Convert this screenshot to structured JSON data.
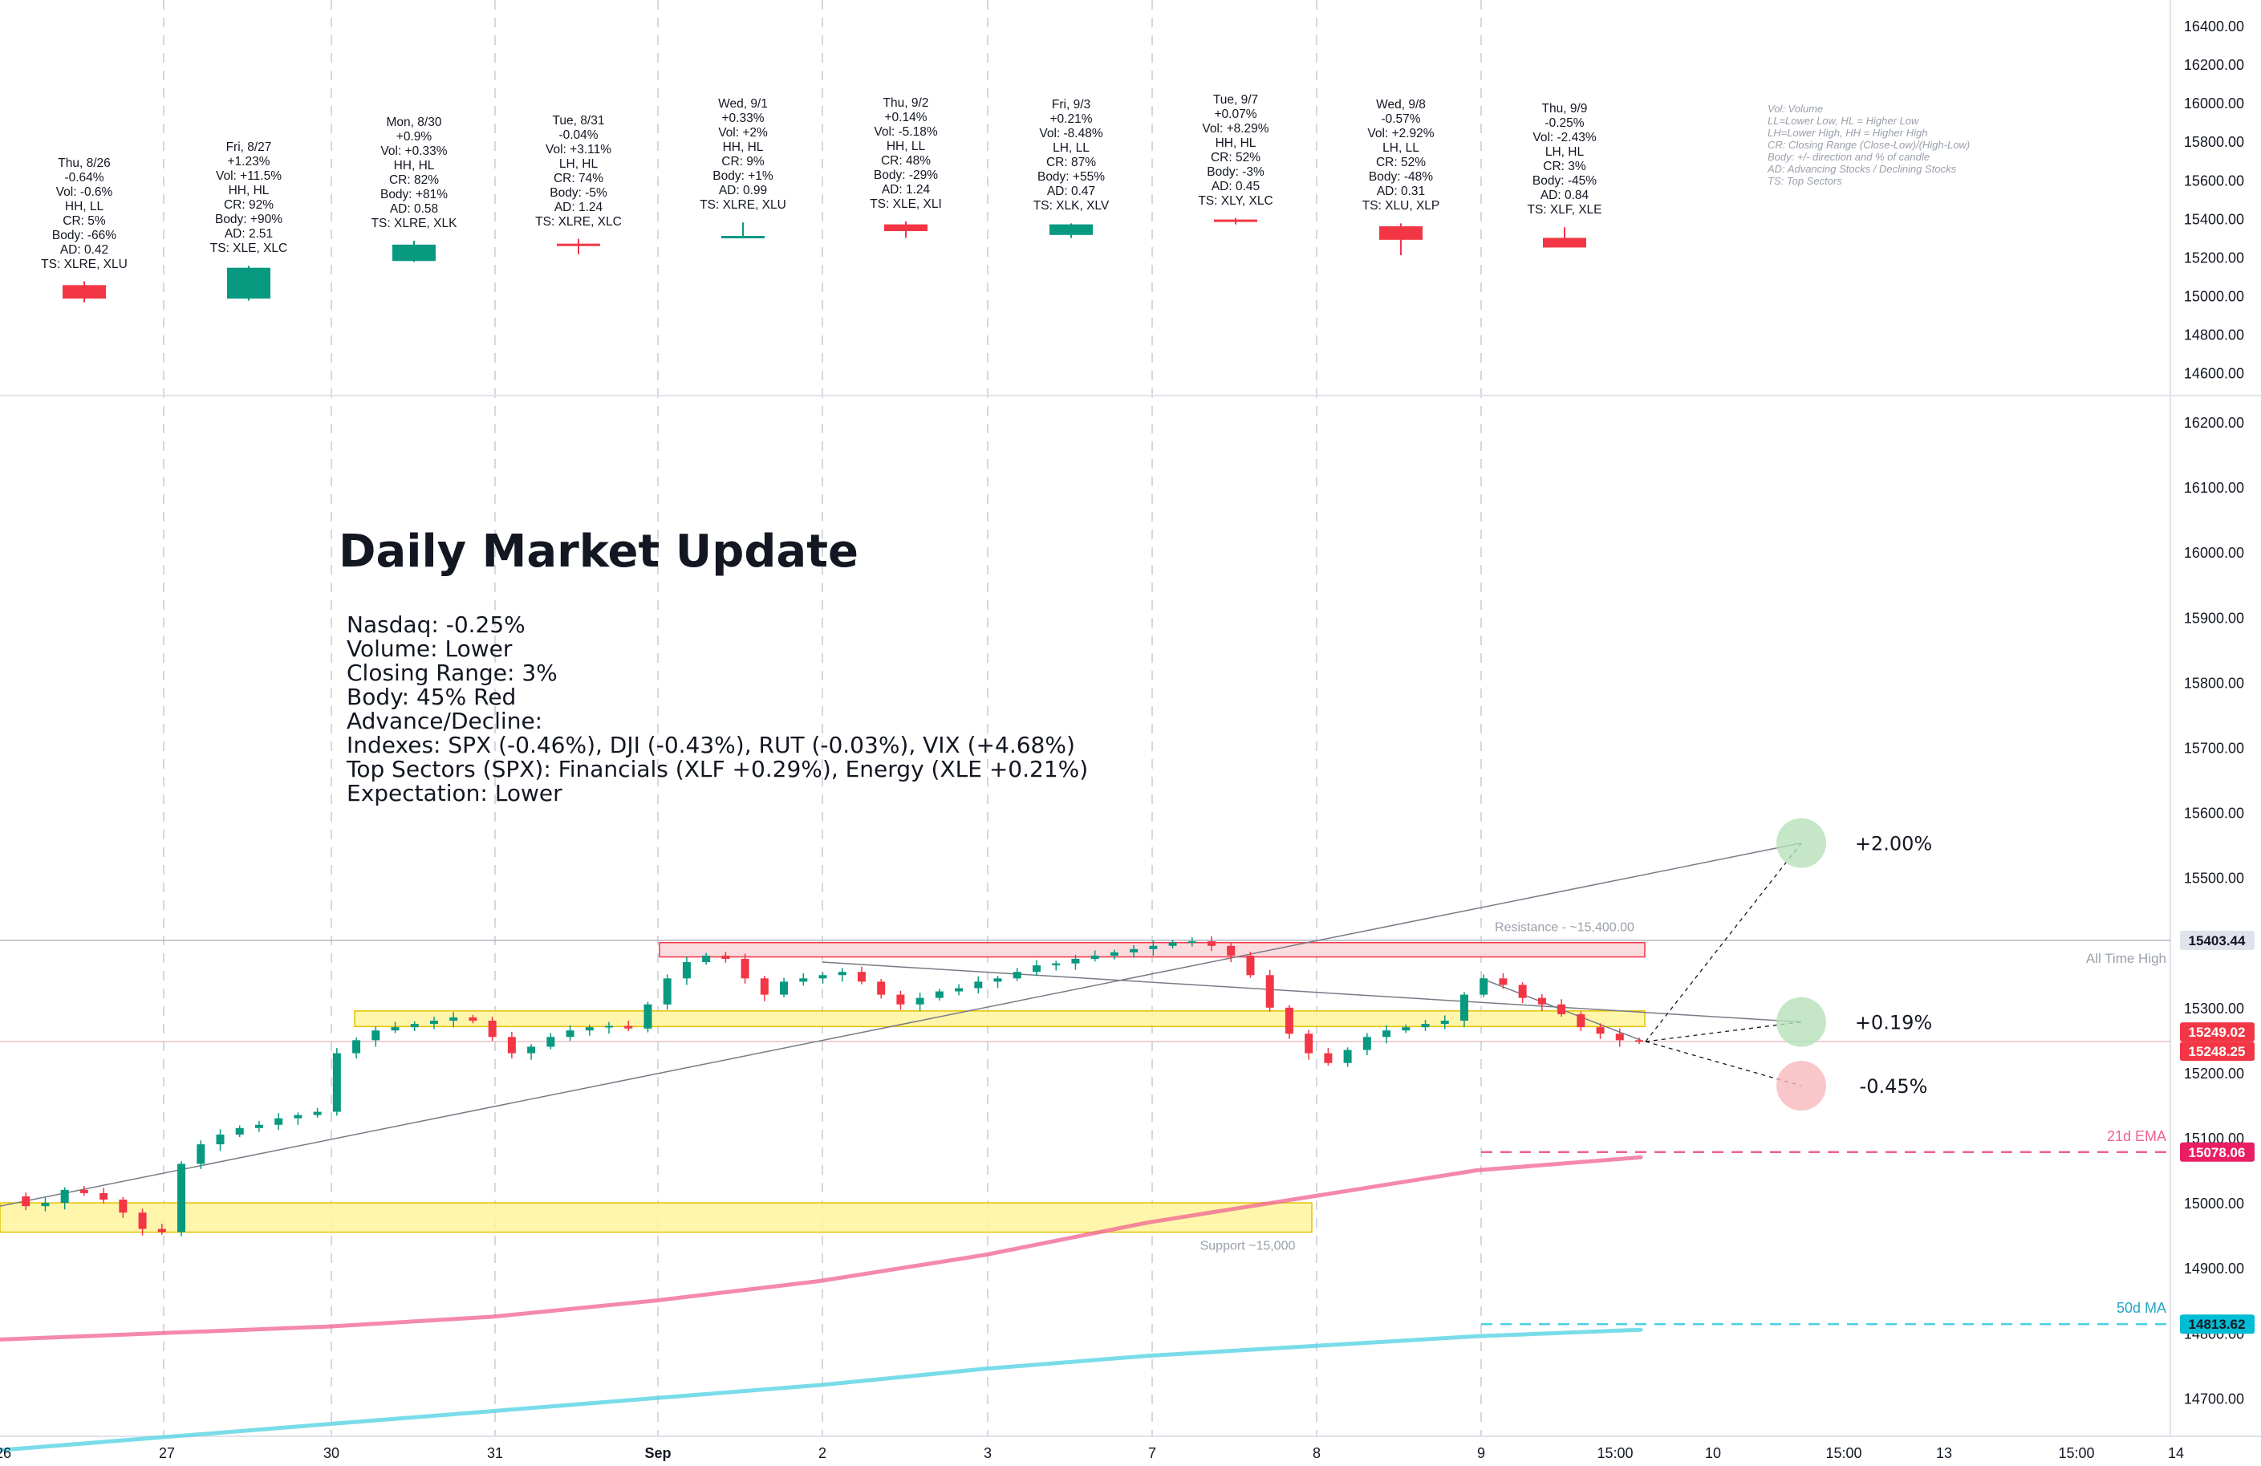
{
  "title": "Daily Market Update",
  "summary_lines": [
    "Nasdaq: -0.25%",
    "Volume: Lower",
    "Closing Range: 3%",
    "Body: 45% Red",
    "Advance/Decline:",
    "Indexes: SPX (-0.46%), DJI (-0.43%), RUT (-0.03%), VIX (+4.68%)",
    "Top Sectors (SPX): Financials (XLF +0.29%), Energy (XLE +0.21%)",
    "Expectation: Lower"
  ],
  "legend_lines": [
    "Vol: Volume",
    "LL=Lower Low, HL = Higher Low",
    "LH=Lower High, HH = Higher High",
    "CR: Closing Range (Close-Low)/(High-Low)",
    "Body: +/- direction and % of candle",
    "AD: Advancing Stocks / Declining Stocks",
    "TS: Top Sectors"
  ],
  "colors": {
    "up": "#089981",
    "down": "#f23645",
    "ema21": "#f06292",
    "ma50": "#4dd0e1",
    "zone_fill": "#fff59d",
    "zone_border": "#e6c200",
    "resistance_fill": "#fbd5d8",
    "resistance_border": "#f23645",
    "grid": "#e8eaee",
    "axis_text": "#131722",
    "muted_text": "#9aa0ab"
  },
  "daily_panel": {
    "y_axis_ticks": [
      "16400.00",
      "16200.00",
      "16000.00",
      "15800.00",
      "15600.00",
      "15400.00",
      "15200.00",
      "15000.00",
      "14800.00",
      "14600.00"
    ],
    "days": [
      {
        "lines": [
          "Thu, 8/26",
          "-0.64%",
          "Vol: -0.6%",
          "HH, LL",
          "CR: 5%",
          "Body: -66%",
          "AD: 0.42",
          "TS: XLRE, XLU"
        ],
        "open": 15055,
        "high": 15075,
        "low": 14965,
        "close": 14985
      },
      {
        "lines": [
          "Fri, 8/27",
          "+1.23%",
          "Vol: +11.5%",
          "HH, HL",
          "CR: 92%",
          "Body: +90%",
          "AD: 2.51",
          "TS: XLE, XLC"
        ],
        "open": 14985,
        "high": 15155,
        "low": 14975,
        "close": 15145
      },
      {
        "lines": [
          "Mon, 8/30",
          "+0.9%",
          "Vol: +0.33%",
          "HH, HL",
          "CR: 82%",
          "Body: +81%",
          "AD: 0.58",
          "TS: XLRE, XLK"
        ],
        "open": 15180,
        "high": 15285,
        "low": 15175,
        "close": 15265
      },
      {
        "lines": [
          "Tue, 8/31",
          "-0.04%",
          "Vol: +3.11%",
          "LH, HL",
          "CR: 74%",
          "Body: -5%",
          "AD: 1.24",
          "TS: XLRE, XLC"
        ],
        "open": 15270,
        "high": 15295,
        "low": 15215,
        "close": 15260
      },
      {
        "lines": [
          "Wed, 9/1",
          "+0.33%",
          "Vol: +2%",
          "HH, HL",
          "CR: 9%",
          "Body: +1%",
          "AD: 0.99",
          "TS: XLRE, XLU"
        ],
        "open": 15305,
        "high": 15380,
        "low": 15300,
        "close": 15310
      },
      {
        "lines": [
          "Thu, 9/2",
          "+0.14%",
          "Vol: -5.18%",
          "HH, LL",
          "CR: 48%",
          "Body: -29%",
          "AD: 1.24",
          "TS: XLE, XLI"
        ],
        "open": 15370,
        "high": 15385,
        "low": 15300,
        "close": 15335
      },
      {
        "lines": [
          "Fri, 9/3",
          "+0.21%",
          "Vol: -8.48%",
          "LH, LL",
          "CR: 87%",
          "Body: +55%",
          "AD: 0.47",
          "TS: XLK, XLV"
        ],
        "open": 15315,
        "high": 15375,
        "low": 15300,
        "close": 15370
      },
      {
        "lines": [
          "Tue, 9/7",
          "+0.07%",
          "Vol: +8.29%",
          "HH, HL",
          "CR: 52%",
          "Body: -3%",
          "AD: 0.45",
          "TS: XLY, XLC"
        ],
        "open": 15395,
        "high": 15403,
        "low": 15370,
        "close": 15385
      },
      {
        "lines": [
          "Wed, 9/8",
          "-0.57%",
          "Vol: +2.92%",
          "LH, LL",
          "CR: 52%",
          "Body: -48%",
          "AD: 0.31",
          "TS: XLU, XLP"
        ],
        "open": 15360,
        "high": 15375,
        "low": 15210,
        "close": 15290
      },
      {
        "lines": [
          "Thu, 9/9",
          "-0.25%",
          "Vol: -2.43%",
          "LH, HL",
          "CR: 3%",
          "Body: -45%",
          "AD: 0.84",
          "TS: XLF, XLE"
        ],
        "open": 15300,
        "high": 15355,
        "low": 15255,
        "close": 15250
      }
    ]
  },
  "chart_data": {
    "type": "line",
    "title": "",
    "y_axis_ticks": [
      "16200.00",
      "16100.00",
      "16000.00",
      "15900.00",
      "15800.00",
      "15700.00",
      "15600.00",
      "15500.00",
      "15400.00",
      "15300.00",
      "15200.00",
      "15100.00",
      "15000.00",
      "14900.00",
      "14800.00",
      "14700.00"
    ],
    "x_axis_ticks": [
      "26",
      "27",
      "30",
      "31",
      "Sep",
      "2",
      "3",
      "7",
      "8",
      "9",
      "15:00",
      "10",
      "15:00",
      "13",
      "15:00",
      "14"
    ],
    "ylim": [
      14650,
      16240
    ],
    "price_path_hourly": [
      15010,
      14995,
      15000,
      15020,
      15015,
      15005,
      14985,
      14960,
      14955,
      15060,
      15090,
      15105,
      15115,
      15120,
      15130,
      15135,
      15140,
      15230,
      15250,
      15265,
      15270,
      15275,
      15280,
      15285,
      15280,
      15255,
      15230,
      15240,
      15255,
      15265,
      15270,
      15272,
      15268,
      15305,
      15345,
      15370,
      15380,
      15375,
      15345,
      15320,
      15340,
      15345,
      15350,
      15355,
      15340,
      15320,
      15305,
      15315,
      15325,
      15330,
      15340,
      15345,
      15355,
      15365,
      15368,
      15375,
      15380,
      15385,
      15390,
      15395,
      15400,
      15402,
      15395,
      15380,
      15350,
      15300,
      15260,
      15230,
      15215,
      15235,
      15255,
      15265,
      15270,
      15275,
      15280,
      15320,
      15345,
      15335,
      15315,
      15305,
      15290,
      15270,
      15260,
      15250,
      15248
    ],
    "series": [
      {
        "name": "21d EMA",
        "values": [
          14790,
          14800,
          14810,
          14825,
          14850,
          14880,
          14920,
          14970,
          15010,
          15050,
          15070
        ],
        "last": 15078.06
      },
      {
        "name": "50d MA",
        "values": [
          14620,
          14640,
          14660,
          14680,
          14700,
          14720,
          14745,
          14765,
          14780,
          14795,
          14805
        ],
        "last": 14813.62
      }
    ],
    "zones": [
      {
        "label": "Resistance - ~15,400.00",
        "low": 15378,
        "high": 15400
      },
      {
        "label": "",
        "low": 15271,
        "high": 15295
      },
      {
        "label": "Support ~15,000",
        "low": 14955,
        "high": 15000
      }
    ],
    "horizontal_lines": [
      {
        "label": "All Time High",
        "value": 15403.44
      },
      {
        "label": "21d EMA",
        "value": 15078.06
      },
      {
        "label": "50d MA",
        "value": 14813.62
      }
    ],
    "price_tags": [
      "15403.44",
      "15249.02",
      "15248.25",
      "15078.06",
      "14813.62"
    ],
    "targets": [
      {
        "label": "+2.00%",
        "value": 15553
      },
      {
        "label": "+0.19%",
        "value": 15278
      },
      {
        "label": "-0.45%",
        "value": 15180
      }
    ]
  }
}
